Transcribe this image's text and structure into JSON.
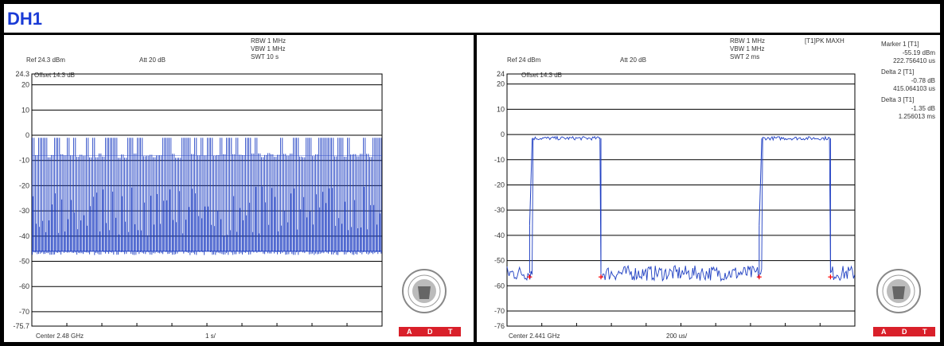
{
  "title": "DH1",
  "colors": {
    "trace": "#1f3fc2",
    "grid": "#000000",
    "marker": "#ff0000",
    "logo_band": "#d9202a",
    "title": "#1a3bd6"
  },
  "logo": {
    "icon": "bureau-veritas-seal-icon",
    "band_letters": [
      "A",
      "D",
      "T"
    ]
  },
  "chart_data": [
    {
      "type": "line",
      "title": "",
      "header": {
        "rbw": "RBW 1 MHz",
        "vbw": "VBW 1 MHz",
        "swt": "SWT 10 s",
        "ref": "Ref 24.3 dBm",
        "att": "Att 20 dB",
        "offset": "Offset 14.3 dB"
      },
      "footer": {
        "center": "Center 2.48 GHz",
        "span": "1 s/"
      },
      "y_tick_labels": [
        "24.3",
        "20",
        "10",
        "0",
        "-10",
        "-20",
        "-30",
        "-40",
        "-50",
        "-60",
        "-70",
        "-75.7"
      ],
      "ylim": [
        -75.7,
        24.3
      ],
      "xlim": [
        0,
        10
      ],
      "x_unit": "s",
      "pattern": {
        "pulse_top_dB": -1,
        "pulse_low_dB": -8,
        "noise_floor_dB": -46,
        "mid_dB": [
          -20,
          -40
        ],
        "pulse_count": 110
      },
      "grid": true
    },
    {
      "type": "line",
      "title": "",
      "header": {
        "rbw": "RBW 1 MHz",
        "vbw": "VBW 1 MHz",
        "swt": "SWT 2 ms",
        "ref": "Ref 24 dBm",
        "att": "Att 20 dB",
        "offset": "Offset 14.3 dB",
        "detector": "[T1]PK MAXH"
      },
      "footer": {
        "center": "Center 2.441 GHz",
        "span": "200 us/"
      },
      "y_tick_labels": [
        "24",
        "20",
        "10",
        "0",
        "-10",
        "-20",
        "-30",
        "-40",
        "-50",
        "-60",
        "-70",
        "-76"
      ],
      "ylim": [
        -76,
        24
      ],
      "xlim": [
        0,
        2000
      ],
      "x_unit": "us",
      "pulses": [
        {
          "start_us": 130,
          "end_us": 540,
          "level_dB": -1.5,
          "shoulder_dB": -36
        },
        {
          "start_us": 1450,
          "end_us": 1860,
          "level_dB": -1.5,
          "shoulder_dB": -36
        }
      ],
      "noise_floor_dB": -55,
      "marker_positions_us": [
        130,
        540,
        1450,
        1860
      ],
      "markers": [
        {
          "label": "Marker 1 [T1]",
          "value1": "-55.19 dBm",
          "value2": "222.756410 us"
        },
        {
          "label": "Delta 2 [T1]",
          "value1": "-0.78 dB",
          "value2": "415.064103 us"
        },
        {
          "label": "Delta 3 [T1]",
          "value1": "-1.35 dB",
          "value2": "1.256013 ms"
        }
      ],
      "grid": true
    }
  ]
}
